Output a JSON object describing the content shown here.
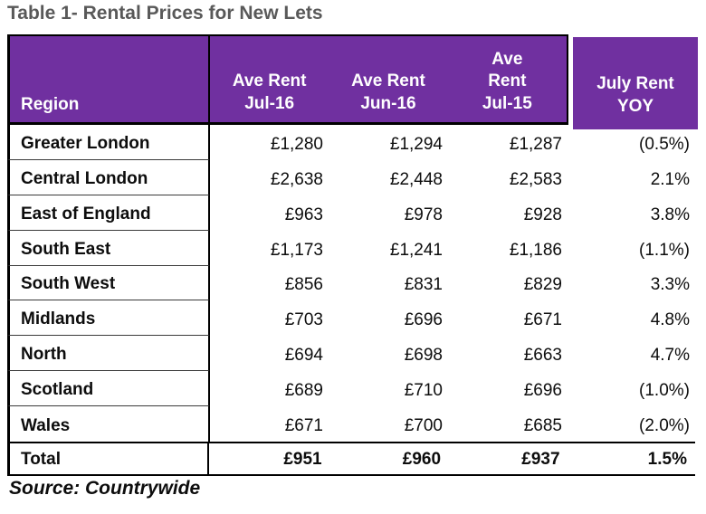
{
  "page": {
    "title": "Table 1- Rental Prices for New Lets",
    "source": "Source: Countrywide"
  },
  "colors": {
    "header_bg": "#7030A0",
    "header_text": "#FFFFFF",
    "title_text": "#595959",
    "border": "#000000"
  },
  "header": {
    "region": "Region",
    "col_jul16": {
      "line1": "Ave Rent",
      "line2": "Jul-16"
    },
    "col_jun16": {
      "line1": "Ave Rent",
      "line2": "Jun-16"
    },
    "col_jul15": {
      "line1": "Ave",
      "line2": "Rent",
      "line3": "Jul-15"
    },
    "col_yoy": {
      "line1": "July Rent",
      "line2": "YOY"
    }
  },
  "rows": [
    {
      "region": "Greater London",
      "jul16": "£1,280",
      "jun16": "£1,294",
      "jul15": "£1,287",
      "yoy": "(0.5%)"
    },
    {
      "region": "Central London",
      "jul16": "£2,638",
      "jun16": "£2,448",
      "jul15": "£2,583",
      "yoy": "2.1%"
    },
    {
      "region": "East of England",
      "jul16": "£963",
      "jun16": "£978",
      "jul15": "£928",
      "yoy": "3.8%"
    },
    {
      "region": "South East",
      "jul16": "£1,173",
      "jun16": "£1,241",
      "jul15": "£1,186",
      "yoy": "(1.1%)"
    },
    {
      "region": "South West",
      "jul16": "£856",
      "jun16": "£831",
      "jul15": "£829",
      "yoy": "3.3%"
    },
    {
      "region": "Midlands",
      "jul16": "£703",
      "jun16": "£696",
      "jul15": "£671",
      "yoy": "4.8%"
    },
    {
      "region": "North",
      "jul16": "£694",
      "jun16": "£698",
      "jul15": "£663",
      "yoy": "4.7%"
    },
    {
      "region": "Scotland",
      "jul16": "£689",
      "jun16": "£710",
      "jul15": "£696",
      "yoy": "(1.0%)"
    },
    {
      "region": "Wales",
      "jul16": "£671",
      "jun16": "£700",
      "jul15": "£685",
      "yoy": "(2.0%)"
    }
  ],
  "total": {
    "region": "Total",
    "jul16": "£951",
    "jun16": "£960",
    "jul15": "£937",
    "yoy": "1.5%"
  },
  "chart_data": {
    "type": "table",
    "title": "Table 1- Rental Prices for New Lets",
    "source": "Source: Countrywide",
    "columns": [
      "Region",
      "Ave Rent Jul-16",
      "Ave Rent Jun-16",
      "Ave Rent Jul-15",
      "July Rent YOY"
    ],
    "rows": [
      [
        "Greater London",
        1280,
        1294,
        1287,
        "-0.5%"
      ],
      [
        "Central London",
        2638,
        2448,
        2583,
        "2.1%"
      ],
      [
        "East of England",
        963,
        978,
        928,
        "3.8%"
      ],
      [
        "South East",
        1173,
        1241,
        1186,
        "-1.1%"
      ],
      [
        "South West",
        856,
        831,
        829,
        "3.3%"
      ],
      [
        "Midlands",
        703,
        696,
        671,
        "4.8%"
      ],
      [
        "North",
        694,
        698,
        663,
        "4.7%"
      ],
      [
        "Scotland",
        689,
        710,
        696,
        "-1.0%"
      ],
      [
        "Wales",
        671,
        700,
        685,
        "-2.0%"
      ],
      [
        "Total",
        951,
        960,
        937,
        "1.5%"
      ]
    ],
    "notes": "Currency GBP; negative YOY values shown in parentheses"
  }
}
